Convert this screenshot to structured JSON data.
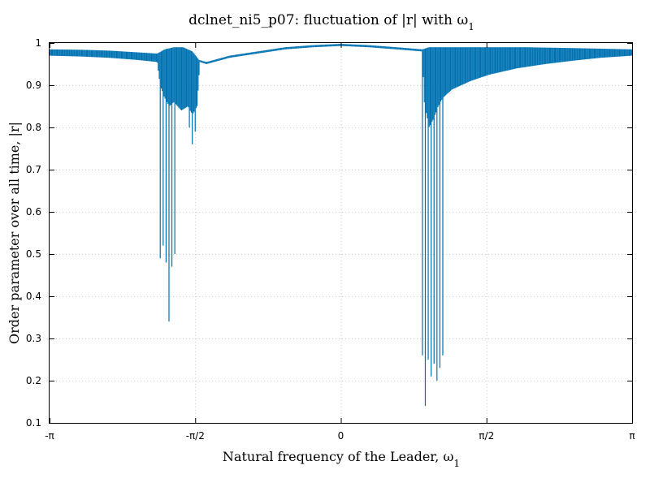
{
  "chart_data": {
    "type": "scatter",
    "title": "dclnet_ni5_p07: fluctuation of |r| with ω",
    "title_subscript": "1",
    "xlabel": "Natural frequency of the Leader, ω",
    "xlabel_subscript": "1",
    "ylabel": "Order parameter over all time, |r|",
    "xlim": [
      -3.14159,
      3.14159
    ],
    "ylim": [
      0.1,
      1.0
    ],
    "x_ticks": [
      {
        "value": -3.14159,
        "label": "-π"
      },
      {
        "value": -1.5708,
        "label": "-π/2"
      },
      {
        "value": 0,
        "label": "0"
      },
      {
        "value": 1.5708,
        "label": "π/2"
      },
      {
        "value": 3.14159,
        "label": "π"
      }
    ],
    "y_ticks": [
      {
        "value": 0.1,
        "label": "0.1"
      },
      {
        "value": 0.2,
        "label": "0.2"
      },
      {
        "value": 0.3,
        "label": "0.3"
      },
      {
        "value": 0.4,
        "label": "0.4"
      },
      {
        "value": 0.5,
        "label": "0.5"
      },
      {
        "value": 0.6,
        "label": "0.6"
      },
      {
        "value": 0.7,
        "label": "0.7"
      },
      {
        "value": 0.8,
        "label": "0.8"
      },
      {
        "value": 0.9,
        "label": "0.9"
      },
      {
        "value": 1.0,
        "label": "1"
      }
    ],
    "grid": true,
    "color": "#0072b2",
    "series": [
      {
        "name": "",
        "upper_envelope": [
          [
            -3.1416,
            0.985
          ],
          [
            -2.8,
            0.984
          ],
          [
            -2.5,
            0.982
          ],
          [
            -2.2,
            0.978
          ],
          [
            -1.98,
            0.975
          ],
          [
            -1.9,
            0.985
          ],
          [
            -1.8,
            0.99
          ],
          [
            -1.7,
            0.99
          ],
          [
            -1.6,
            0.98
          ],
          [
            -1.53,
            0.96
          ],
          [
            -1.45,
            0.955
          ],
          [
            -1.2,
            0.97
          ],
          [
            -0.9,
            0.98
          ],
          [
            -0.6,
            0.99
          ],
          [
            -0.3,
            0.995
          ],
          [
            0,
            0.998
          ],
          [
            0.3,
            0.995
          ],
          [
            0.6,
            0.99
          ],
          [
            0.88,
            0.985
          ],
          [
            0.95,
            0.99
          ],
          [
            1.2,
            0.99
          ],
          [
            1.6,
            0.99
          ],
          [
            2.0,
            0.99
          ],
          [
            2.5,
            0.988
          ],
          [
            3.1416,
            0.985
          ]
        ],
        "lower_envelope": [
          [
            -3.1416,
            0.97
          ],
          [
            -2.8,
            0.968
          ],
          [
            -2.5,
            0.965
          ],
          [
            -2.2,
            0.96
          ],
          [
            -1.98,
            0.955
          ],
          [
            -1.95,
            0.9
          ],
          [
            -1.9,
            0.87
          ],
          [
            -1.85,
            0.85
          ],
          [
            -1.8,
            0.86
          ],
          [
            -1.72,
            0.84
          ],
          [
            -1.65,
            0.85
          ],
          [
            -1.6,
            0.83
          ],
          [
            -1.55,
            0.85
          ],
          [
            -1.52,
            0.955
          ],
          [
            -1.45,
            0.95
          ],
          [
            -1.2,
            0.965
          ],
          [
            -0.9,
            0.975
          ],
          [
            -0.6,
            0.985
          ],
          [
            -0.3,
            0.99
          ],
          [
            0,
            0.993
          ],
          [
            0.3,
            0.99
          ],
          [
            0.6,
            0.985
          ],
          [
            0.88,
            0.98
          ],
          [
            0.9,
            0.86
          ],
          [
            0.95,
            0.8
          ],
          [
            1.0,
            0.82
          ],
          [
            1.05,
            0.85
          ],
          [
            1.1,
            0.87
          ],
          [
            1.2,
            0.89
          ],
          [
            1.4,
            0.91
          ],
          [
            1.6,
            0.925
          ],
          [
            1.9,
            0.94
          ],
          [
            2.2,
            0.95
          ],
          [
            2.5,
            0.958
          ],
          [
            2.8,
            0.965
          ],
          [
            3.1416,
            0.97
          ]
        ],
        "drops": [
          {
            "x_range": [
              -1.97,
              -1.78
            ],
            "min_y": 0.47
          },
          {
            "x_range": [
              -1.86,
              -1.85
            ],
            "min_y": 0.3
          },
          {
            "x_range": [
              -1.66,
              -1.56
            ],
            "min_y": 0.76
          },
          {
            "x_range": [
              0.87,
              1.1
            ],
            "min_y": 0.2
          },
          {
            "x_range": [
              0.91,
              0.92
            ],
            "min_y": 0.12
          }
        ]
      }
    ]
  }
}
